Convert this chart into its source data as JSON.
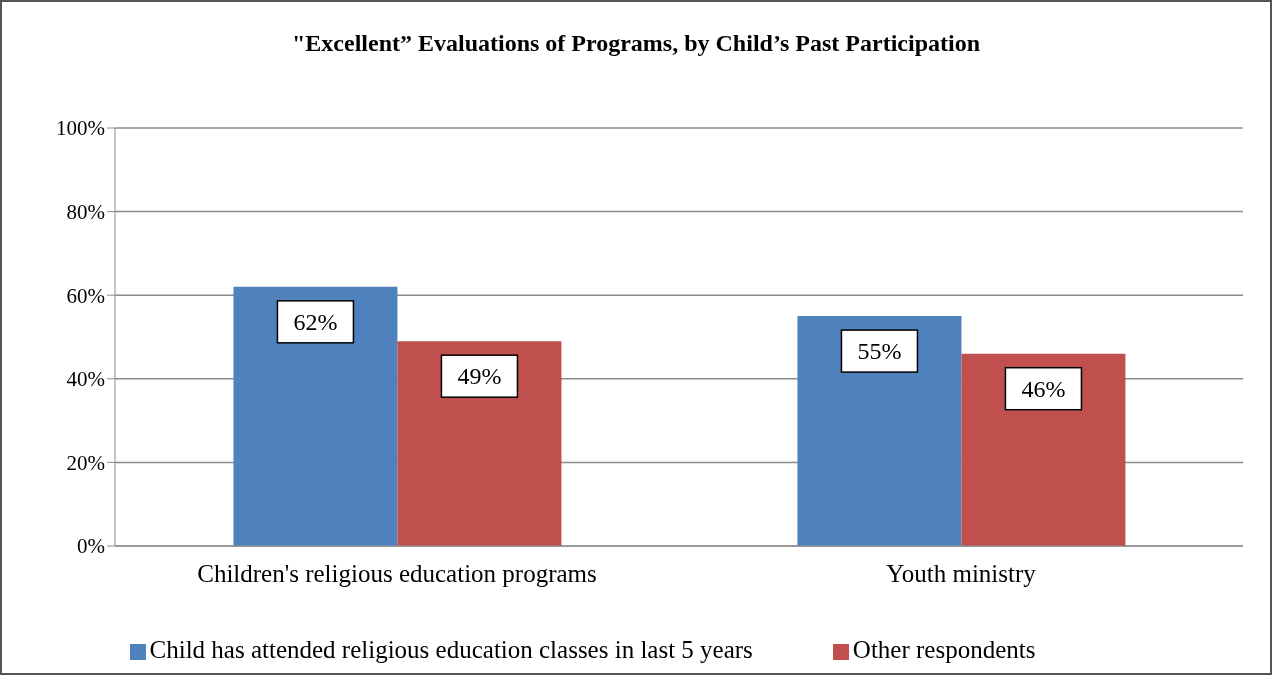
{
  "chart_data": {
    "type": "bar",
    "title": "\"Excellent” Evaluations of Programs, by Child’s Past Participation",
    "categories": [
      "Children's religious education programs",
      "Youth ministry"
    ],
    "series": [
      {
        "name": "Child has attended religious education classes in last 5 years",
        "color": "#4f81bd",
        "values": [
          62,
          55
        ],
        "value_labels": [
          "62%",
          "55%"
        ]
      },
      {
        "name": "Other respondents",
        "color": "#c0504d",
        "values": [
          49,
          46
        ],
        "value_labels": [
          "49%",
          "46%"
        ]
      }
    ],
    "ylim": [
      0,
      100
    ],
    "yticks": [
      {
        "value": 0,
        "label": "0%"
      },
      {
        "value": 20,
        "label": "20%"
      },
      {
        "value": 40,
        "label": "40%"
      },
      {
        "value": 60,
        "label": "60%"
      },
      {
        "value": 80,
        "label": "80%"
      },
      {
        "value": 100,
        "label": "100%"
      }
    ],
    "grid": "y",
    "legend": "bottom"
  }
}
